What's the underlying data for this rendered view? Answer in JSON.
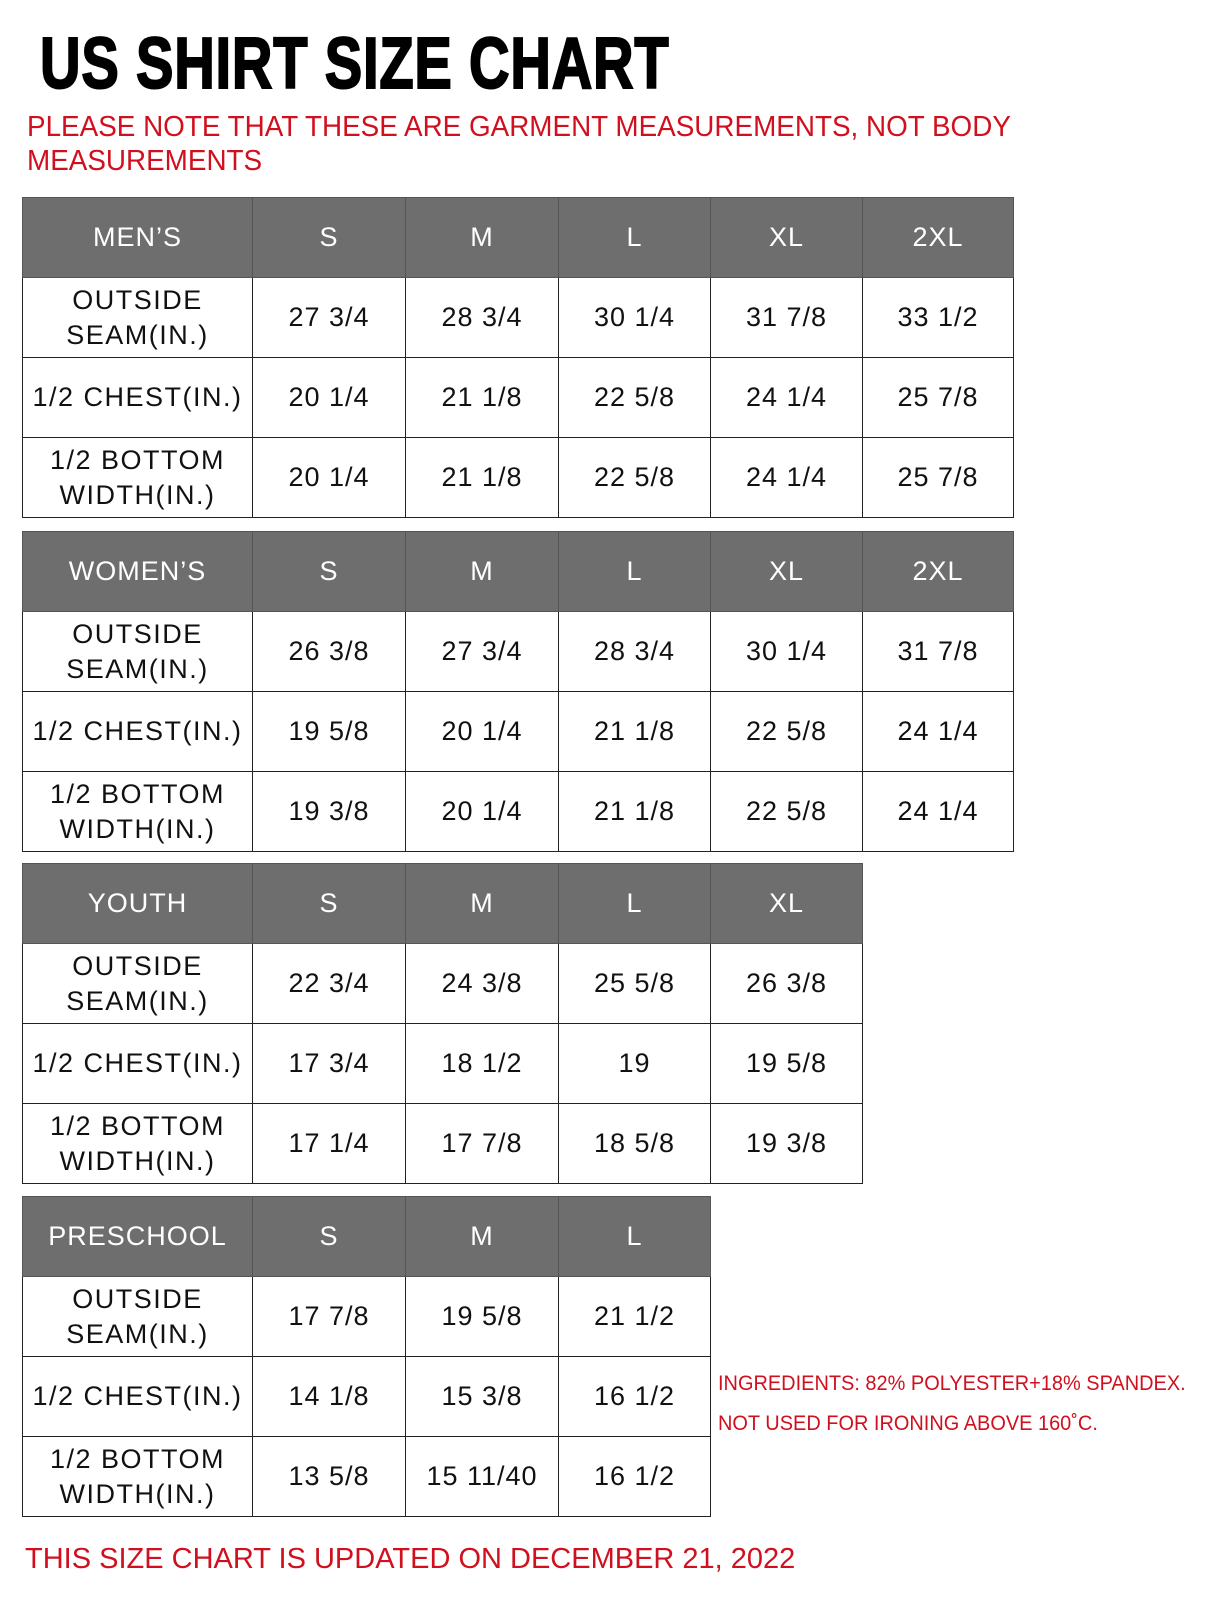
{
  "title": "US SHIRT SIZE CHART",
  "note": "PLEASE NOTE THAT THESE ARE GARMENT MEASUREMENTS, NOT BODY MEASUREMENTS",
  "tables": [
    {
      "category": "MEN’S",
      "sizes": [
        "S",
        "M",
        "L",
        "XL",
        "2XL"
      ],
      "rows": [
        {
          "label": "OUTSIDE SEAM(IN.)",
          "values": [
            "27 3/4",
            "28 3/4",
            "30 1/4",
            "31 7/8",
            "33 1/2"
          ]
        },
        {
          "label": "1/2 CHEST(IN.)",
          "values": [
            "20 1/4",
            "21 1/8",
            "22 5/8",
            "24 1/4",
            "25 7/8"
          ]
        },
        {
          "label": "1/2 BOTTOM WIDTH(IN.)",
          "values": [
            "20 1/4",
            "21 1/8",
            "22 5/8",
            "24 1/4",
            "25 7/8"
          ]
        }
      ]
    },
    {
      "category": "WOMEN’S",
      "sizes": [
        "S",
        "M",
        "L",
        "XL",
        "2XL"
      ],
      "rows": [
        {
          "label": "OUTSIDE SEAM(IN.)",
          "values": [
            "26 3/8",
            "27 3/4",
            "28 3/4",
            "30 1/4",
            "31 7/8"
          ]
        },
        {
          "label": "1/2 CHEST(IN.)",
          "values": [
            "19 5/8",
            "20 1/4",
            "21 1/8",
            "22 5/8",
            "24 1/4"
          ]
        },
        {
          "label": "1/2 BOTTOM WIDTH(IN.)",
          "values": [
            "19 3/8",
            "20 1/4",
            "21 1/8",
            "22 5/8",
            "24 1/4"
          ]
        }
      ]
    },
    {
      "category": "YOUTH",
      "sizes": [
        "S",
        "M",
        "L",
        "XL"
      ],
      "rows": [
        {
          "label": "OUTSIDE SEAM(IN.)",
          "values": [
            "22 3/4",
            "24 3/8",
            "25 5/8",
            "26 3/8"
          ]
        },
        {
          "label": "1/2 CHEST(IN.)",
          "values": [
            "17 3/4",
            "18 1/2",
            "19",
            "19 5/8"
          ]
        },
        {
          "label": "1/2 BOTTOM WIDTH(IN.)",
          "values": [
            "17 1/4",
            "17 7/8",
            "18 5/8",
            "19 3/8"
          ]
        }
      ]
    },
    {
      "category": "PRESCHOOL",
      "sizes": [
        "S",
        "M",
        "L"
      ],
      "rows": [
        {
          "label": "OUTSIDE SEAM(IN.)",
          "values": [
            "17 7/8",
            "19 5/8",
            "21 1/2"
          ]
        },
        {
          "label": "1/2 CHEST(IN.)",
          "values": [
            "14 1/8",
            "15 3/8",
            "16 1/2"
          ]
        },
        {
          "label": "1/2 BOTTOM WIDTH(IN.)",
          "values": [
            "13 5/8",
            "15 11/40",
            "16 1/2"
          ]
        }
      ]
    }
  ],
  "ingredients": [
    "INGREDIENTS: 82% POLYESTER+18% SPANDEX.",
    "NOT USED FOR IRONING ABOVE 160˚C."
  ],
  "footer": "THIS SIZE CHART IS UPDATED ON DECEMBER 21, 2022",
  "colors": {
    "header_bg": "#6e6e6e",
    "accent_red": "#d0101e"
  }
}
